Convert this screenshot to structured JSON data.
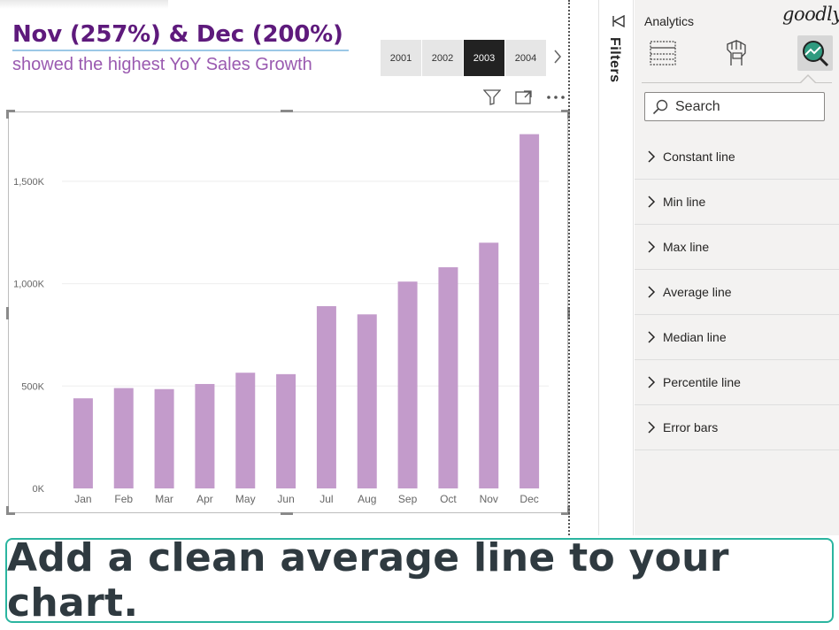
{
  "report": {
    "headline": "Nov (257%) & Dec (200%)",
    "subtitle": "showed the highest YoY Sales Growth",
    "years": [
      {
        "label": "2001",
        "selected": false
      },
      {
        "label": "2002",
        "selected": false
      },
      {
        "label": "2003",
        "selected": true
      },
      {
        "label": "2004",
        "selected": false
      }
    ],
    "visual_header_icons": [
      "filter-icon",
      "focus-mode-icon",
      "more-options-icon"
    ],
    "colors": {
      "headline": "#5e1a7c",
      "subtitle": "#9a5ab0",
      "bar": "#c39bcb",
      "selected_year": "#222222"
    }
  },
  "chart_data": {
    "type": "bar",
    "categories": [
      "Jan",
      "Feb",
      "Mar",
      "Apr",
      "May",
      "Jun",
      "Jul",
      "Aug",
      "Sep",
      "Oct",
      "Nov",
      "Dec"
    ],
    "values": [
      440000,
      490000,
      485000,
      510000,
      565000,
      558000,
      890000,
      850000,
      1010000,
      1080000,
      1200000,
      1730000
    ],
    "yticks": [
      0,
      500000,
      1000000,
      1500000
    ],
    "ytick_labels": [
      "0K",
      "500K",
      "1,000K",
      "1,500K"
    ],
    "ylim": [
      0,
      1750000
    ],
    "title": "",
    "xlabel": "",
    "ylabel": "",
    "grid": true,
    "color": "#c39bcb"
  },
  "filters_pane": {
    "label": "Filters"
  },
  "analytics_pane": {
    "title": "Analytics",
    "brand": "goodly",
    "tabs": [
      "fields-tab-icon",
      "format-tab-icon",
      "analytics-tab-icon"
    ],
    "search_placeholder": "Search",
    "items": [
      "Constant line",
      "Min line",
      "Max line",
      "Average line",
      "Median line",
      "Percentile line",
      "Error bars"
    ]
  },
  "caption": {
    "text": "Add a clean average line to your chart."
  }
}
